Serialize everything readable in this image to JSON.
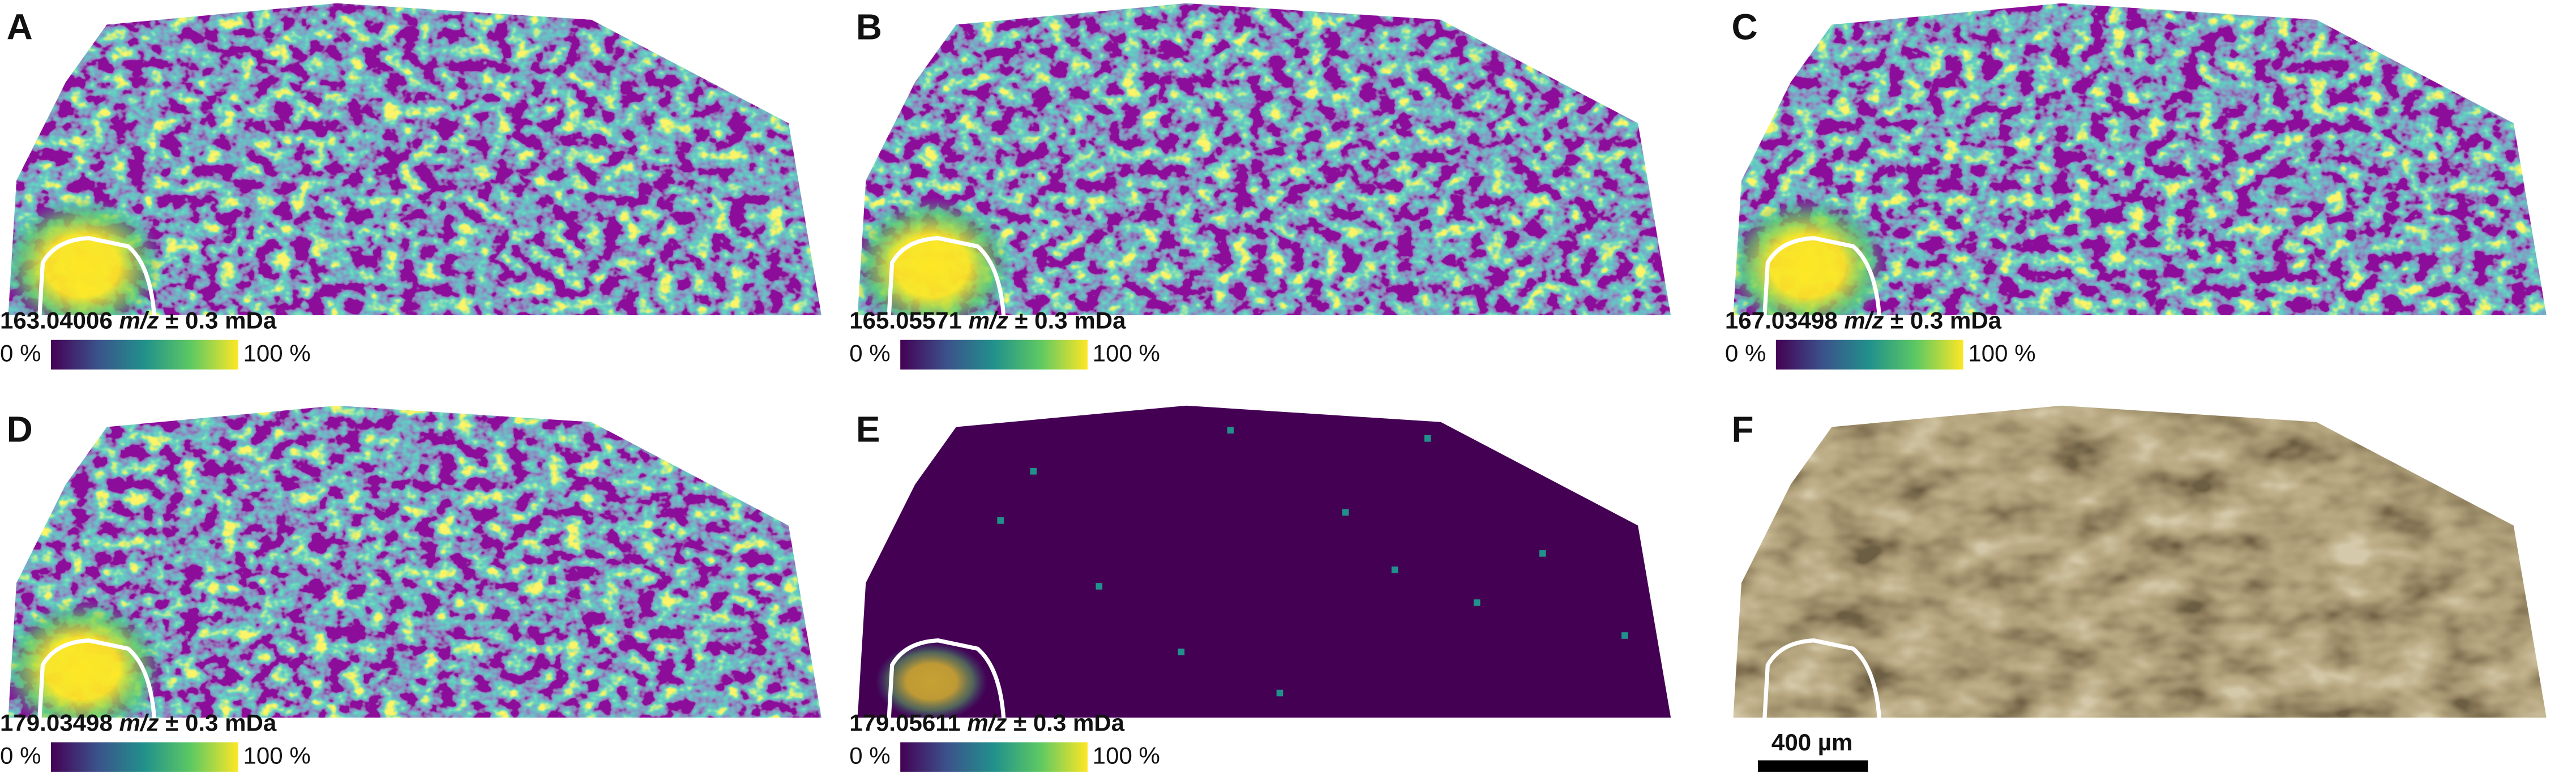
{
  "panels": [
    {
      "letter": "A",
      "mass": "163.04006",
      "unit": "m/z",
      "tolerance": "± 0.3 mDa",
      "colorbar_min": "0 %",
      "colorbar_max": "100 %"
    },
    {
      "letter": "B",
      "mass": "165.05571",
      "unit": "m/z",
      "tolerance": "± 0.3 mDa",
      "colorbar_min": "0 %",
      "colorbar_max": "100 %"
    },
    {
      "letter": "C",
      "mass": "167.03498",
      "unit": "m/z",
      "tolerance": "± 0.3 mDa",
      "colorbar_min": "0 %",
      "colorbar_max": "100 %"
    },
    {
      "letter": "D",
      "mass": "179.03498",
      "unit": "m/z",
      "tolerance": "± 0.3 mDa",
      "colorbar_min": "0 %",
      "colorbar_max": "100 %"
    },
    {
      "letter": "E",
      "mass": "179.05611",
      "unit": "m/z",
      "tolerance": "± 0.3 mDa",
      "colorbar_min": "0 %",
      "colorbar_max": "100 %"
    },
    {
      "letter": "F",
      "scale_bar": "400 µm"
    }
  ]
}
